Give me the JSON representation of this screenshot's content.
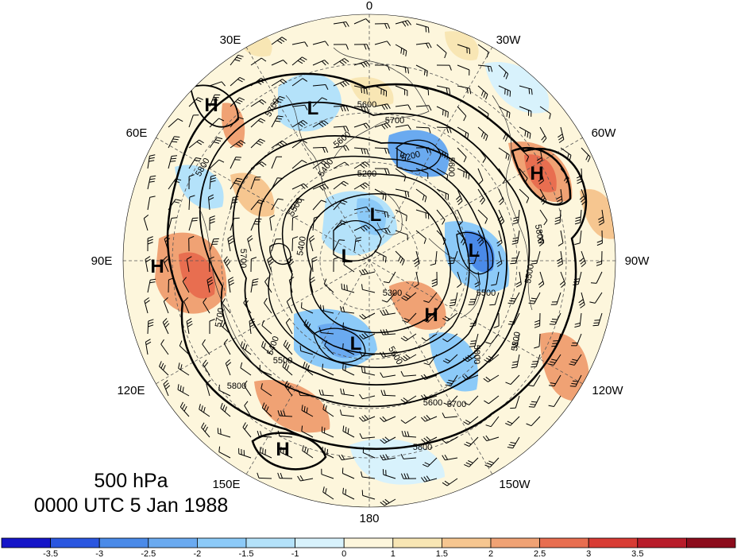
{
  "caption": {
    "level": "500 hPa",
    "time": "0000 UTC 5 Jan 1988"
  },
  "longitude_labels": [
    {
      "text": "0",
      "name": "lon-label-0"
    },
    {
      "text": "30E",
      "name": "lon-label-30e"
    },
    {
      "text": "30W",
      "name": "lon-label-30w"
    },
    {
      "text": "60E",
      "name": "lon-label-60e"
    },
    {
      "text": "60W",
      "name": "lon-label-60w"
    },
    {
      "text": "90E",
      "name": "lon-label-90e"
    },
    {
      "text": "90W",
      "name": "lon-label-90w"
    },
    {
      "text": "120E",
      "name": "lon-label-120e"
    },
    {
      "text": "120W",
      "name": "lon-label-120w"
    },
    {
      "text": "150E",
      "name": "lon-label-150e"
    },
    {
      "text": "150W",
      "name": "lon-label-150w"
    },
    {
      "text": "180",
      "name": "lon-label-180"
    }
  ],
  "contour_labels": [
    "5800",
    "5700",
    "5600",
    "5400",
    "5200",
    "5200",
    "5500",
    "5700",
    "5400",
    "5600",
    "5700",
    "5500",
    "5300",
    "5600",
    "5800",
    "5800",
    "5700",
    "5800",
    "5600",
    "5700",
    "5800",
    "5800",
    "5600",
    "5400",
    "5500",
    "5500"
  ],
  "pressure_centers": [
    "H",
    "L",
    "H",
    "H",
    "L",
    "L",
    "L",
    "H",
    "L",
    "H"
  ],
  "colorbar": {
    "tick_labels": [
      "-3.5",
      "-3",
      "-2.5",
      "-2",
      "-1.5",
      "-1",
      "0",
      "1",
      "1.5",
      "2",
      "2.5",
      "3",
      "3.5"
    ],
    "colors": [
      "#1515c8",
      "#2a56e0",
      "#4a8ae8",
      "#6aaaf0",
      "#8ccaf8",
      "#b4e2fa",
      "#d8f2fc",
      "#fdf6dc",
      "#f8e6b4",
      "#f6c690",
      "#f0a274",
      "#e86e50",
      "#d83c34",
      "#b81c2a",
      "#8c0c1c"
    ]
  }
}
